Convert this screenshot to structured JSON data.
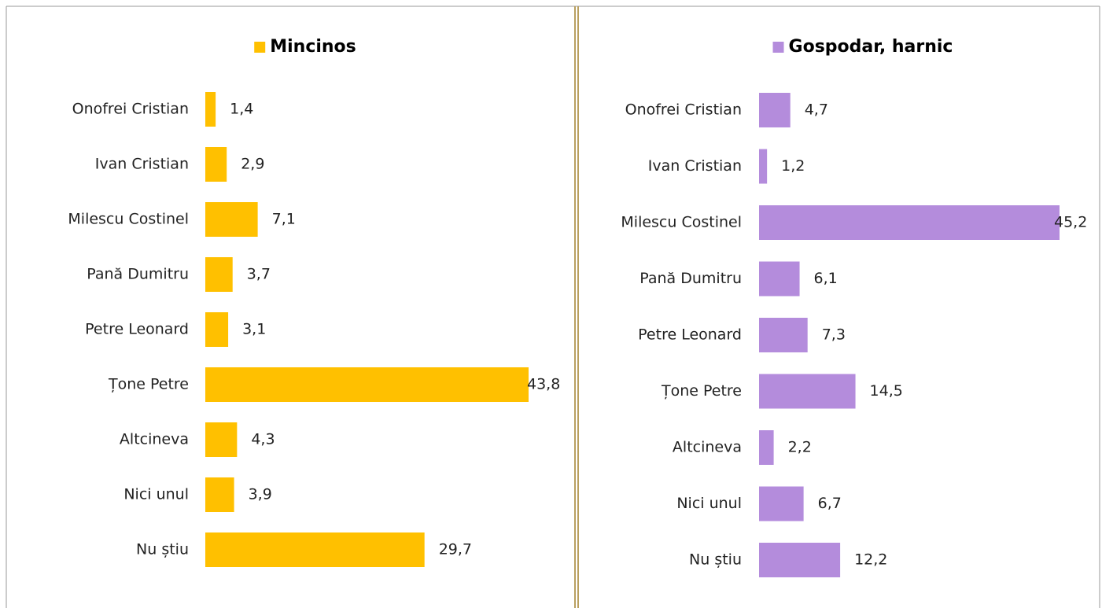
{
  "chart_data": [
    {
      "type": "bar",
      "orientation": "horizontal",
      "title": "Mincinos",
      "color": "#ffc000",
      "categories": [
        "Onofrei Cristian",
        "Ivan Cristian",
        "Milescu Costinel",
        "Pană Dumitru",
        "Petre Leonard",
        "Țone Petre",
        "Altcineva",
        "Nici unul",
        "Nu știu"
      ],
      "values": [
        1.4,
        2.9,
        7.1,
        3.7,
        3.1,
        43.8,
        4.3,
        3.9,
        29.7
      ],
      "value_labels": [
        "1,4",
        "2,9",
        "7,1",
        "3,7",
        "3,1",
        "43,8",
        "4,3",
        "3,9",
        "29,7"
      ]
    },
    {
      "type": "bar",
      "orientation": "horizontal",
      "title": "Gospodar, harnic",
      "color": "#b48cdc",
      "categories": [
        "Onofrei Cristian",
        "Ivan Cristian",
        "Milescu Costinel",
        "Pană Dumitru",
        "Petre Leonard",
        "Țone Petre",
        "Altcineva",
        "Nici unul",
        "Nu știu"
      ],
      "values": [
        4.7,
        1.2,
        45.2,
        6.1,
        7.3,
        14.5,
        2.2,
        6.7,
        12.2
      ],
      "value_labels": [
        "4,7",
        "1,2",
        "45,2",
        "6,1",
        "7,3",
        "14,5",
        "2,2",
        "6,7",
        "12,2"
      ]
    }
  ]
}
